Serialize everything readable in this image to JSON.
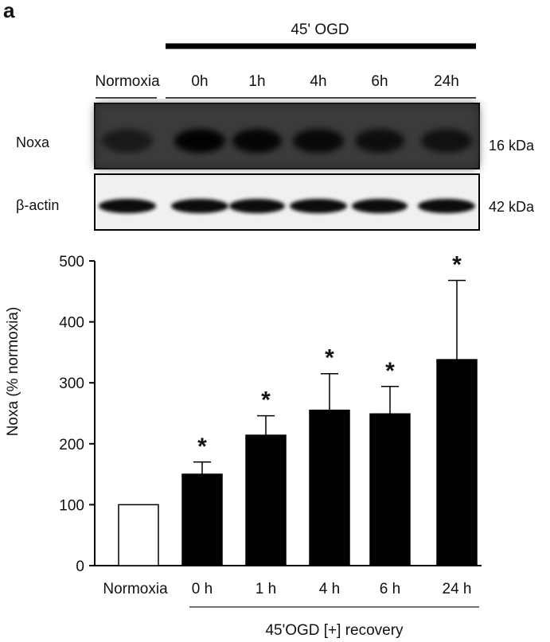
{
  "panel_label": "a",
  "blot": {
    "treatment_label": "45' OGD",
    "lane_labels": [
      "Normoxia",
      "0h",
      "1h",
      "4h",
      "6h",
      "24h"
    ],
    "rows": [
      {
        "protein": "Noxa",
        "kda": "16 kDa"
      },
      {
        "protein": "β-actin",
        "kda": "42 kDa"
      }
    ]
  },
  "chart_data": {
    "type": "bar",
    "categories": [
      "Normoxia",
      "0 h",
      "1 h",
      "4 h",
      "6 h",
      "24 h"
    ],
    "values": [
      100,
      150,
      214,
      255,
      249,
      338
    ],
    "errors": [
      0,
      20,
      32,
      60,
      45,
      130
    ],
    "significant": [
      false,
      true,
      true,
      true,
      true,
      true
    ],
    "significance_marker": "*",
    "bar_colors": [
      "#ffffff",
      "#000000",
      "#000000",
      "#000000",
      "#000000",
      "#000000"
    ],
    "ylabel": "Noxa (% normoxia)",
    "xlabel": "",
    "ylim": [
      0,
      500
    ],
    "yticks": [
      0,
      100,
      200,
      300,
      400,
      500
    ],
    "group_label": "45'OGD [+] recovery",
    "grid": false,
    "legend": "none"
  }
}
